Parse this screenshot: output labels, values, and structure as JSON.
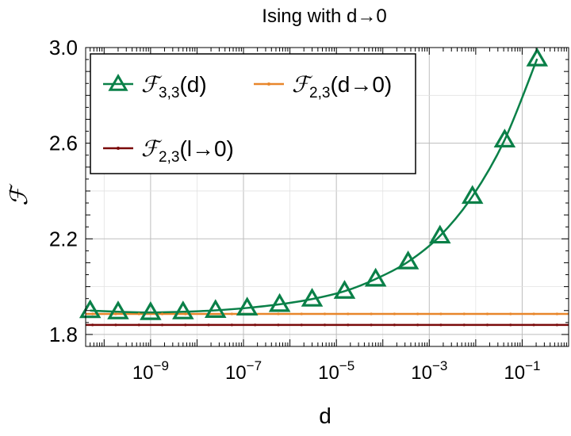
{
  "chart_data": {
    "type": "line",
    "title": "Ising with d→0",
    "xlabel": "d",
    "ylabel": "ℱ",
    "x_scale": "log",
    "xlim": [
      4e-11,
      1
    ],
    "ylim": [
      1.75,
      3.0
    ],
    "x_ticks": [
      1e-09,
      1e-07,
      1e-05,
      0.001,
      0.1
    ],
    "x_tick_base": "10",
    "x_tick_exponents": [
      "−9",
      "−7",
      "−5",
      "−3",
      "−1"
    ],
    "y_ticks": [
      1.8,
      2.2,
      2.6,
      3.0
    ],
    "y_tick_labels": [
      "1.8",
      "2.2",
      "2.6",
      "3.0"
    ],
    "grid": true,
    "legend_position": "top-left",
    "series": [
      {
        "name": "ℱ 3,3(d)",
        "legend_main": "ℱ",
        "legend_sub": "3,3",
        "legend_tail": "(d)",
        "color": "#0a8048",
        "marker": "triangle-open",
        "x": [
          5e-11,
          2e-10,
          1e-09,
          5e-09,
          2.5e-08,
          1.2e-07,
          6e-07,
          3e-06,
          1.5e-05,
          7e-05,
          0.00035,
          0.0017,
          0.0085,
          0.042,
          0.21
        ],
        "y": [
          1.9,
          1.895,
          1.892,
          1.895,
          1.901,
          1.911,
          1.926,
          1.948,
          1.981,
          2.032,
          2.104,
          2.212,
          2.378,
          2.614,
          2.953
        ]
      },
      {
        "name": "ℱ 2,3(d→0)",
        "legend_main": "ℱ",
        "legend_sub": "2,3",
        "legend_tail": "(d→0)",
        "color": "#e8862a",
        "marker": "dot",
        "constant": 1.886
      },
      {
        "name": "ℱ 2,3(l→0)",
        "legend_main": "ℱ",
        "legend_sub": "2,3",
        "legend_tail": "(l→0)",
        "color": "#7a0a0a",
        "marker": "dot",
        "constant": 1.84
      }
    ]
  }
}
